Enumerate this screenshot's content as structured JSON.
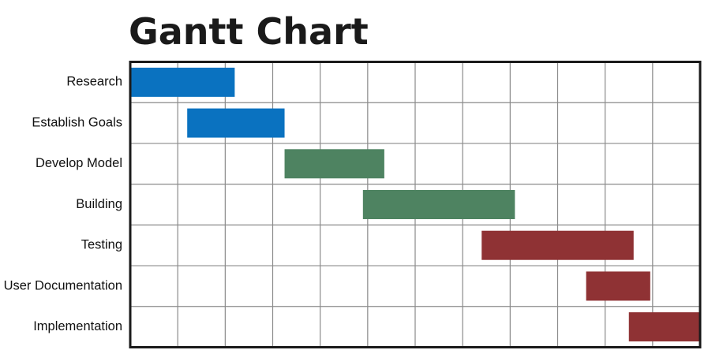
{
  "chart_data": {
    "type": "bar",
    "title": "Gantt Chart",
    "categories": [
      "Research",
      "Establish Goals",
      "Develop Model",
      "Building",
      "Testing",
      "User Documentation",
      "Implementation"
    ],
    "tasks": [
      {
        "name": "Research",
        "start": 0.0,
        "end": 2.2,
        "color": "#0a72c0"
      },
      {
        "name": "Establish Goals",
        "start": 1.2,
        "end": 3.25,
        "color": "#0a72c0"
      },
      {
        "name": "Develop Model",
        "start": 3.25,
        "end": 5.35,
        "color": "#4e8361"
      },
      {
        "name": "Building",
        "start": 4.9,
        "end": 8.1,
        "color": "#4e8361"
      },
      {
        "name": "Testing",
        "start": 7.4,
        "end": 10.6,
        "color": "#8f3234"
      },
      {
        "name": "User Documentation",
        "start": 9.6,
        "end": 10.95,
        "color": "#8f3234"
      },
      {
        "name": "Implementation",
        "start": 10.5,
        "end": 12.0,
        "color": "#8f3234"
      }
    ],
    "xlim": [
      0,
      12
    ],
    "x_gridlines": 12,
    "grid": true,
    "xlabel": "",
    "ylabel": ""
  },
  "colors": {
    "blue": "#0a72c0",
    "green": "#4e8361",
    "red": "#8f3234",
    "grid": "#8a8a8a",
    "frame": "#1a1a1a"
  }
}
